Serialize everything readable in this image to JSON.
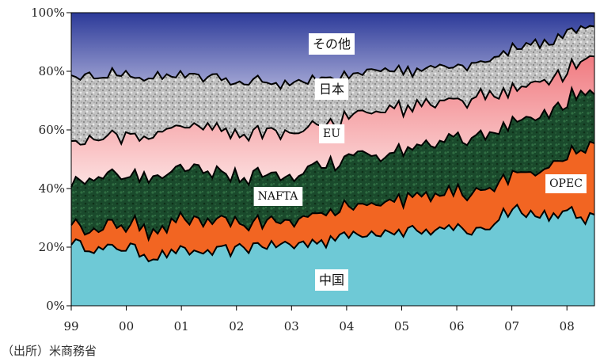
{
  "chart_data": {
    "type": "area",
    "stacked": true,
    "normalized": true,
    "x_ticks": [
      "99",
      "00",
      "01",
      "02",
      "03",
      "04",
      "05",
      "06",
      "07",
      "08"
    ],
    "y_ticks": [
      "0%",
      "20%",
      "40%",
      "60%",
      "80%",
      "100%"
    ],
    "ylim": [
      0,
      100
    ],
    "x_start": 1999.0,
    "x_end": 2008.5,
    "series": [
      {
        "name": "中国",
        "color": "#6ec9d6",
        "anchors": [
          [
            1999.0,
            21
          ],
          [
            1999.5,
            19
          ],
          [
            2000.0,
            20
          ],
          [
            2000.5,
            17
          ],
          [
            2001.0,
            19
          ],
          [
            2001.5,
            18
          ],
          [
            2002.0,
            19
          ],
          [
            2002.5,
            21
          ],
          [
            2003.0,
            20
          ],
          [
            2003.5,
            22
          ],
          [
            2004.0,
            24
          ],
          [
            2004.5,
            25
          ],
          [
            2005.0,
            26
          ],
          [
            2005.5,
            26
          ],
          [
            2006.0,
            26
          ],
          [
            2006.5,
            26
          ],
          [
            2007.0,
            33
          ],
          [
            2007.5,
            31
          ],
          [
            2008.0,
            31
          ],
          [
            2008.5,
            30
          ]
        ]
      },
      {
        "name": "OPEC",
        "color": "#f26522",
        "anchors": [
          [
            1999.0,
            7
          ],
          [
            1999.5,
            7
          ],
          [
            2000.0,
            8
          ],
          [
            2000.5,
            9
          ],
          [
            2001.0,
            10
          ],
          [
            2001.5,
            10
          ],
          [
            2002.0,
            9
          ],
          [
            2002.5,
            8
          ],
          [
            2003.0,
            9
          ],
          [
            2003.5,
            10
          ],
          [
            2004.0,
            9
          ],
          [
            2004.5,
            10
          ],
          [
            2005.0,
            11
          ],
          [
            2005.5,
            12
          ],
          [
            2006.0,
            12
          ],
          [
            2006.5,
            13
          ],
          [
            2007.0,
            12
          ],
          [
            2007.5,
            15
          ],
          [
            2008.0,
            19
          ],
          [
            2008.5,
            26
          ]
        ]
      },
      {
        "name": "NAFTA",
        "color": "#17452a",
        "anchors": [
          [
            1999.0,
            14
          ],
          [
            1999.5,
            18
          ],
          [
            2000.0,
            17
          ],
          [
            2000.5,
            19
          ],
          [
            2001.0,
            17
          ],
          [
            2001.5,
            18
          ],
          [
            2002.0,
            16
          ],
          [
            2002.5,
            16
          ],
          [
            2003.0,
            15
          ],
          [
            2003.5,
            17
          ],
          [
            2004.0,
            17
          ],
          [
            2004.5,
            17
          ],
          [
            2005.0,
            16
          ],
          [
            2005.5,
            17
          ],
          [
            2006.0,
            19
          ],
          [
            2006.5,
            19
          ],
          [
            2007.0,
            17
          ],
          [
            2007.5,
            18
          ],
          [
            2008.0,
            19
          ],
          [
            2008.5,
            18
          ]
        ]
      },
      {
        "name": "EU",
        "color": "#f4868a",
        "anchors": [
          [
            1999.0,
            14
          ],
          [
            1999.5,
            13
          ],
          [
            2000.0,
            14
          ],
          [
            2000.5,
            14
          ],
          [
            2001.0,
            15
          ],
          [
            2001.5,
            15
          ],
          [
            2002.0,
            15
          ],
          [
            2002.5,
            15
          ],
          [
            2003.0,
            15
          ],
          [
            2003.5,
            14
          ],
          [
            2004.0,
            14
          ],
          [
            2004.5,
            15
          ],
          [
            2005.0,
            14
          ],
          [
            2005.5,
            13
          ],
          [
            2006.0,
            13
          ],
          [
            2006.5,
            13
          ],
          [
            2007.0,
            12
          ],
          [
            2007.5,
            12
          ],
          [
            2008.0,
            11
          ],
          [
            2008.5,
            12
          ]
        ]
      },
      {
        "name": "日本",
        "color": "#b4b4b4",
        "anchors": [
          [
            1999.0,
            23
          ],
          [
            1999.5,
            22
          ],
          [
            2000.0,
            21
          ],
          [
            2000.5,
            19
          ],
          [
            2001.0,
            17
          ],
          [
            2001.5,
            17
          ],
          [
            2002.0,
            18
          ],
          [
            2002.5,
            17
          ],
          [
            2003.0,
            17
          ],
          [
            2003.5,
            15
          ],
          [
            2004.0,
            15
          ],
          [
            2004.5,
            13
          ],
          [
            2005.0,
            13
          ],
          [
            2005.5,
            12
          ],
          [
            2006.0,
            11
          ],
          [
            2006.5,
            11
          ],
          [
            2007.0,
            14
          ],
          [
            2007.5,
            13
          ],
          [
            2008.0,
            13
          ],
          [
            2008.5,
            9
          ]
        ]
      },
      {
        "name": "その他",
        "color": "#3b45a0",
        "anchors": [
          [
            1999.0,
            21
          ],
          [
            1999.5,
            21
          ],
          [
            2000.0,
            20
          ],
          [
            2000.5,
            22
          ],
          [
            2001.0,
            22
          ],
          [
            2001.5,
            22
          ],
          [
            2002.0,
            23
          ],
          [
            2002.5,
            23
          ],
          [
            2003.0,
            24
          ],
          [
            2003.5,
            22
          ],
          [
            2004.0,
            21
          ],
          [
            2004.5,
            20
          ],
          [
            2005.0,
            20
          ],
          [
            2005.5,
            20
          ],
          [
            2006.0,
            19
          ],
          [
            2006.5,
            18
          ],
          [
            2007.0,
            12
          ],
          [
            2007.5,
            11
          ],
          [
            2008.0,
            7
          ],
          [
            2008.5,
            5
          ]
        ]
      }
    ]
  },
  "source_note": "（出所）米商務省"
}
